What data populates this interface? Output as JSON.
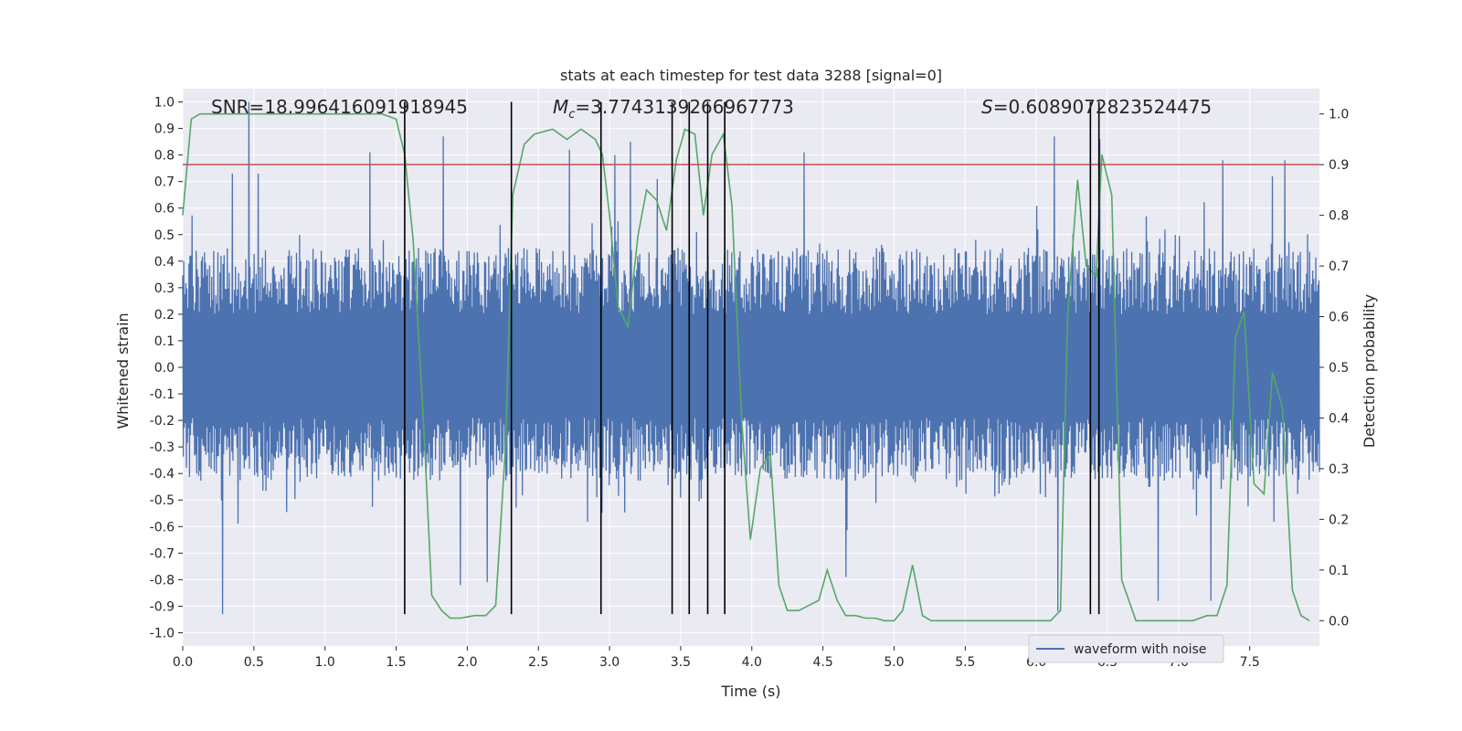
{
  "chart_data": {
    "type": "line",
    "title": "stats at each timestep for test data 3288 [signal=0]",
    "xlabel": "Time (s)",
    "ylabel": "Whitened strain",
    "ylabel_right": "Detection probability",
    "xlim": [
      0.0,
      7.99
    ],
    "ylim": [
      -1.05,
      1.05
    ],
    "ylim_right": [
      -0.05,
      1.05
    ],
    "xticks": [
      "0.0",
      "0.5",
      "1.0",
      "1.5",
      "2.0",
      "2.5",
      "3.0",
      "3.5",
      "4.0",
      "4.5",
      "5.0",
      "5.5",
      "6.0",
      "6.5",
      "7.0",
      "7.5"
    ],
    "xtick_values": [
      0.0,
      0.5,
      1.0,
      1.5,
      2.0,
      2.5,
      3.0,
      3.5,
      4.0,
      4.5,
      5.0,
      5.5,
      6.0,
      6.5,
      7.0,
      7.5
    ],
    "yticks": [
      "1.0",
      "0.9",
      "0.8",
      "0.7",
      "0.6",
      "0.5",
      "0.4",
      "0.3",
      "0.2",
      "0.1",
      "0.0",
      "-0.1",
      "-0.2",
      "-0.3",
      "-0.4",
      "-0.5",
      "-0.6",
      "-0.7",
      "-0.8",
      "-0.9",
      "-1.0"
    ],
    "ytick_values": [
      1.0,
      0.9,
      0.8,
      0.7,
      0.6,
      0.5,
      0.4,
      0.3,
      0.2,
      0.1,
      0.0,
      -0.1,
      -0.2,
      -0.3,
      -0.4,
      -0.5,
      -0.6,
      -0.7,
      -0.8,
      -0.9,
      -1.0
    ],
    "yticks_right": [
      "1.0",
      "0.9",
      "0.8",
      "0.7",
      "0.6",
      "0.5",
      "0.4",
      "0.3",
      "0.2",
      "0.1",
      "0.0"
    ],
    "ytick_values_right": [
      1.0,
      0.9,
      0.8,
      0.7,
      0.6,
      0.5,
      0.4,
      0.3,
      0.2,
      0.1,
      0.0
    ],
    "annotations": {
      "snr": "SNR=18.996416091918945",
      "mc": "M_c=3.7743139266967773",
      "s": "S=0.6089072823524475"
    },
    "threshold": {
      "value": 0.9,
      "axis": "right",
      "color": "#c44e52"
    },
    "vertical_lines": {
      "x": [
        1.56,
        2.31,
        2.94,
        3.44,
        3.56,
        3.69,
        3.81,
        6.38,
        6.44
      ],
      "ymin": -0.93,
      "ymax": 1.0,
      "color": "#000000"
    },
    "series": [
      {
        "name": "waveform with noise",
        "axis": "left",
        "color": "#4c72b0",
        "style": "dense noise trace",
        "envelope_upper_typical": 0.4,
        "envelope_lower_typical": -0.38,
        "peaks": [
          [
            0.28,
            -0.93
          ],
          [
            0.47,
            1.0
          ],
          [
            0.53,
            0.73
          ],
          [
            0.35,
            0.73
          ],
          [
            1.32,
            0.81
          ],
          [
            1.83,
            0.87
          ],
          [
            1.95,
            -0.82
          ],
          [
            2.14,
            -0.81
          ],
          [
            2.72,
            0.82
          ],
          [
            3.04,
            0.8
          ],
          [
            3.15,
            0.85
          ],
          [
            3.34,
            0.71
          ],
          [
            4.37,
            0.81
          ],
          [
            4.66,
            -0.79
          ],
          [
            6.13,
            0.87
          ],
          [
            6.15,
            -0.92
          ],
          [
            6.45,
            0.86
          ],
          [
            6.86,
            -0.88
          ],
          [
            7.23,
            -0.88
          ],
          [
            7.31,
            0.78
          ],
          [
            7.75,
            0.78
          ],
          [
            7.66,
            0.72
          ]
        ]
      },
      {
        "name": "",
        "axis": "right",
        "color": "#55a868",
        "x": [
          0.0,
          0.06,
          0.12,
          0.2,
          0.3,
          0.5,
          0.8,
          1.0,
          1.2,
          1.4,
          1.5,
          1.56,
          1.62,
          1.7,
          1.75,
          1.82,
          1.88,
          1.95,
          2.05,
          2.13,
          2.2,
          2.27,
          2.32,
          2.4,
          2.47,
          2.6,
          2.7,
          2.8,
          2.9,
          2.95,
          3.0,
          3.06,
          3.13,
          3.2,
          3.26,
          3.33,
          3.4,
          3.47,
          3.53,
          3.6,
          3.66,
          3.72,
          3.8,
          3.86,
          3.93,
          3.99,
          4.06,
          4.13,
          4.19,
          4.25,
          4.33,
          4.4,
          4.47,
          4.53,
          4.6,
          4.66,
          4.73,
          4.8,
          4.87,
          4.93,
          5.0,
          5.06,
          5.13,
          5.2,
          5.26,
          5.4,
          5.6,
          5.8,
          6.0,
          6.1,
          6.17,
          6.22,
          6.29,
          6.35,
          6.42,
          6.46,
          6.53,
          6.6,
          6.7,
          6.9,
          7.1,
          7.2,
          7.27,
          7.34,
          7.4,
          7.46,
          7.53,
          7.6,
          7.66,
          7.73,
          7.8,
          7.86,
          7.92
        ],
        "values": [
          0.8,
          0.99,
          1.0,
          1.0,
          1.0,
          1.0,
          1.0,
          1.0,
          1.0,
          1.0,
          0.99,
          0.92,
          0.75,
          0.35,
          0.05,
          0.02,
          0.005,
          0.005,
          0.01,
          0.01,
          0.03,
          0.35,
          0.84,
          0.94,
          0.96,
          0.97,
          0.95,
          0.97,
          0.95,
          0.92,
          0.8,
          0.62,
          0.58,
          0.76,
          0.85,
          0.83,
          0.77,
          0.91,
          0.97,
          0.96,
          0.8,
          0.92,
          0.96,
          0.82,
          0.39,
          0.16,
          0.3,
          0.33,
          0.07,
          0.02,
          0.02,
          0.03,
          0.04,
          0.1,
          0.04,
          0.01,
          0.01,
          0.005,
          0.005,
          0.0,
          0.0,
          0.02,
          0.11,
          0.01,
          0.0,
          0.0,
          0.0,
          0.0,
          0.0,
          0.0,
          0.02,
          0.6,
          0.87,
          0.7,
          0.68,
          0.92,
          0.84,
          0.08,
          0.0,
          0.0,
          0.0,
          0.01,
          0.01,
          0.07,
          0.56,
          0.61,
          0.27,
          0.25,
          0.49,
          0.42,
          0.06,
          0.01,
          0.0
        ]
      }
    ],
    "legend": {
      "entries": [
        "waveform with noise"
      ],
      "placement": "lower-right"
    },
    "grid": true
  }
}
